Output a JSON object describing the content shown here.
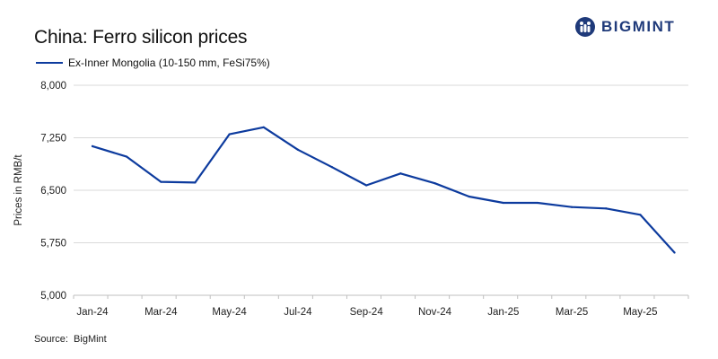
{
  "header": {
    "brand_name": "BIGMINT",
    "brand_color": "#1f3a7a"
  },
  "source_label": "Source:",
  "source_value": "BigMint",
  "chart_data": {
    "type": "line",
    "title": "China: Ferro silicon prices",
    "xlabel": "",
    "ylabel": "Prices in RMB/t",
    "ylim": [
      5000,
      8000
    ],
    "yticks": [
      5000,
      5750,
      6500,
      7250,
      8000
    ],
    "ytick_labels": [
      "5,000",
      "5,750",
      "6,500",
      "7,250",
      "8,000"
    ],
    "xtick_labels": [
      "Jan-24",
      "Mar-24",
      "May-24",
      "Jul-24",
      "Sep-24",
      "Nov-24",
      "Jan-25",
      "Mar-25",
      "May-25"
    ],
    "grid": true,
    "legend_position": "top-left",
    "series": [
      {
        "name": "Ex-Inner Mongolia (10-150 mm, FeSi75%)",
        "color": "#0d3b9e",
        "points": [
          {
            "x": 0.0,
            "y": 7130
          },
          {
            "x": 0.5,
            "y": 6980
          },
          {
            "x": 1.0,
            "y": 6620
          },
          {
            "x": 1.5,
            "y": 6610
          },
          {
            "x": 2.0,
            "y": 7300
          },
          {
            "x": 2.5,
            "y": 7400
          },
          {
            "x": 3.0,
            "y": 7080
          },
          {
            "x": 3.5,
            "y": 6830
          },
          {
            "x": 4.0,
            "y": 6570
          },
          {
            "x": 4.5,
            "y": 6740
          },
          {
            "x": 5.0,
            "y": 6600
          },
          {
            "x": 5.5,
            "y": 6410
          },
          {
            "x": 6.0,
            "y": 6320
          },
          {
            "x": 6.5,
            "y": 6320
          },
          {
            "x": 7.0,
            "y": 6260
          },
          {
            "x": 7.5,
            "y": 6240
          },
          {
            "x": 8.0,
            "y": 6150
          },
          {
            "x": 8.5,
            "y": 5610
          }
        ]
      }
    ]
  }
}
